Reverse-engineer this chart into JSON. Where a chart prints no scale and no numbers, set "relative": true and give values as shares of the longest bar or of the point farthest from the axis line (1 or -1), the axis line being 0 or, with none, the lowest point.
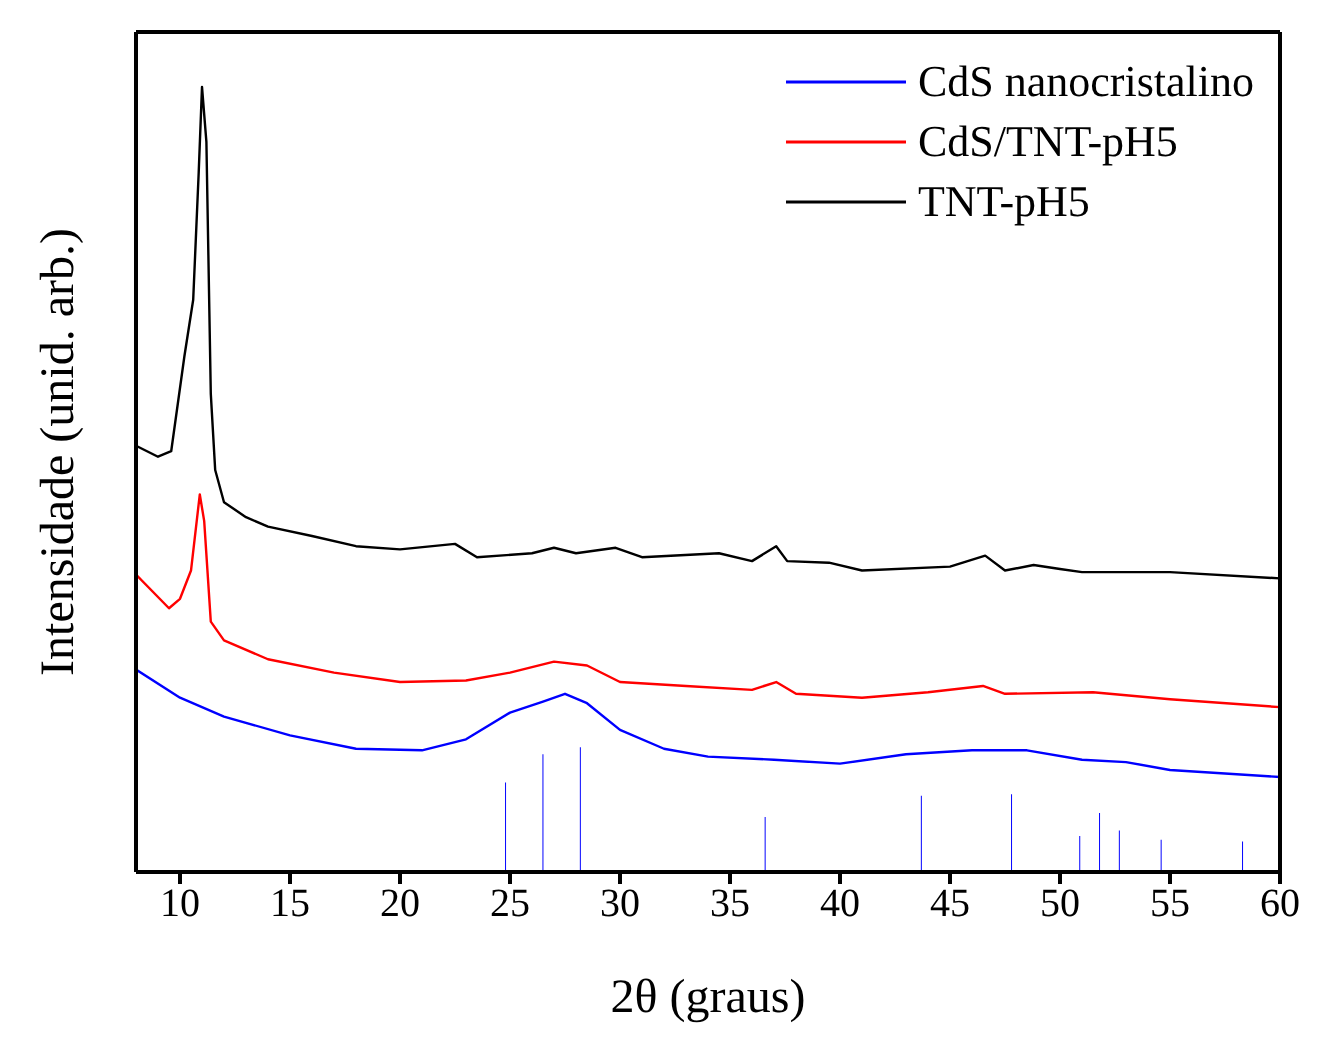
{
  "chart_data": {
    "type": "line",
    "relative": true,
    "xlabel": "2θ (graus)",
    "ylabel": "Intensidade (unid. arb.)",
    "xlim": [
      8,
      60
    ],
    "xticks": [
      10,
      15,
      20,
      25,
      30,
      35,
      40,
      45,
      50,
      55,
      60
    ],
    "legend": "top right",
    "series": [
      {
        "name": "CdS nanocristalino",
        "color": "#0000ff",
        "x": [
          8,
          10,
          12,
          15,
          18,
          21,
          23,
          25,
          26.5,
          27.5,
          28.5,
          30,
          32,
          34,
          37,
          40,
          43,
          46,
          48.5,
          51,
          53,
          55,
          60
        ],
        "values": [
          0.258,
          0.222,
          0.198,
          0.174,
          0.157,
          0.155,
          0.169,
          0.203,
          0.217,
          0.227,
          0.215,
          0.181,
          0.157,
          0.147,
          0.143,
          0.138,
          0.15,
          0.155,
          0.155,
          0.143,
          0.14,
          0.13,
          0.121
        ]
      },
      {
        "name": "CdS/TNT-pH5",
        "color": "#ff0000",
        "x": [
          8,
          9.5,
          10,
          10.5,
          10.9,
          11.1,
          11.4,
          12,
          14,
          17,
          20,
          23,
          25,
          27,
          28.5,
          30,
          33,
          36,
          37.1,
          38,
          41,
          44,
          46.5,
          47.5,
          51.5,
          55,
          60
        ],
        "values": [
          0.379,
          0.336,
          0.348,
          0.384,
          0.481,
          0.447,
          0.319,
          0.295,
          0.271,
          0.254,
          0.242,
          0.244,
          0.254,
          0.268,
          0.263,
          0.242,
          0.237,
          0.232,
          0.242,
          0.227,
          0.222,
          0.229,
          0.237,
          0.227,
          0.229,
          0.22,
          0.21
        ]
      },
      {
        "name": "TNT-pH5",
        "color": "#000000",
        "x": [
          8,
          9,
          9.6,
          10.2,
          10.6,
          10.85,
          11,
          11.2,
          11.4,
          11.6,
          12,
          13,
          14,
          16,
          18,
          20,
          22.5,
          23.5,
          26,
          27,
          28,
          29.8,
          31,
          34.5,
          36,
          37.1,
          37.6,
          39.5,
          41,
          45,
          46.6,
          47.5,
          48.8,
          50,
          51,
          55,
          60
        ],
        "values": [
          0.543,
          0.529,
          0.536,
          0.657,
          0.729,
          0.891,
          1,
          0.93,
          0.609,
          0.512,
          0.471,
          0.452,
          0.44,
          0.428,
          0.415,
          0.411,
          0.418,
          0.401,
          0.406,
          0.413,
          0.406,
          0.413,
          0.401,
          0.406,
          0.396,
          0.415,
          0.396,
          0.394,
          0.384,
          0.389,
          0.403,
          0.384,
          0.391,
          0.386,
          0.382,
          0.382,
          0.374
        ]
      },
      {
        "type": "bar",
        "color": "#0000ff",
        "x": [
          24.8,
          26.5,
          28.2,
          36.6,
          43.7,
          47.8,
          50.9,
          51.8,
          52.7,
          54.6,
          58.3
        ],
        "values": [
          0.114,
          0.15,
          0.159,
          0.07,
          0.097,
          0.099,
          0.046,
          0.075,
          0.053,
          0.041,
          0.039
        ]
      }
    ]
  }
}
